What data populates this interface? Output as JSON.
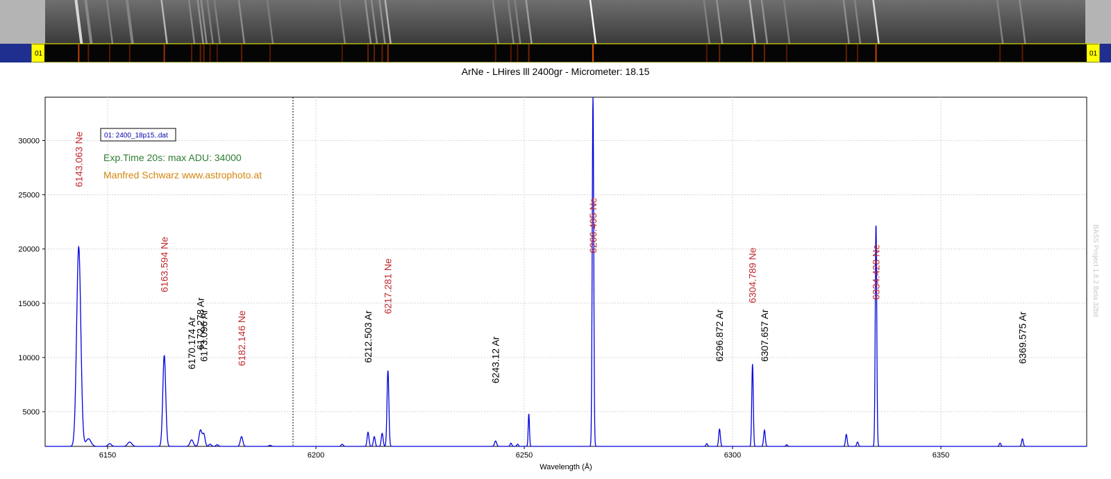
{
  "spectrum_strip": {
    "left_tag": "01",
    "right_tag": "01",
    "colors": {
      "side_band": "#1f2f8f",
      "tag_bg": "#ffff00",
      "gray_frame": "#b4b4b4"
    }
  },
  "chart_data": {
    "type": "line",
    "title": "ArNe - LHires lll 2400gr - Micrometer: 18.15",
    "xlabel": "Wavelength (Å)",
    "ylabel": "",
    "xlim": [
      6135,
      6385
    ],
    "ylim": [
      1800,
      34000
    ],
    "x_ticks": [
      6150,
      6200,
      6250,
      6300,
      6350
    ],
    "y_ticks": [
      5000,
      10000,
      15000,
      20000,
      25000,
      30000
    ],
    "grid": true,
    "baseline": 1800,
    "marker_x": 6194.5,
    "legend": {
      "label": "01: 2400_18p15..dat",
      "placement": "top-left"
    },
    "annotations": [
      {
        "text": "Exp.Time 20s: max ADU: 34000",
        "color": "#2e7d32"
      },
      {
        "text": "Manfred Schwarz www.astrophoto.at",
        "color": "#d4860e"
      }
    ],
    "watermark": "BASS Project 1.8.2 Beta 32bit",
    "series": [
      {
        "color": "#0000dd",
        "peaks": [
          {
            "x": 6143.063,
            "y": 20200,
            "w": 0.5
          },
          {
            "x": 6145.4,
            "y": 2500,
            "w": 0.6
          },
          {
            "x": 6150.5,
            "y": 2050,
            "w": 0.4
          },
          {
            "x": 6155.3,
            "y": 2200,
            "w": 0.5
          },
          {
            "x": 6163.594,
            "y": 10200,
            "w": 0.35
          },
          {
            "x": 6170.174,
            "y": 2400,
            "w": 0.4
          },
          {
            "x": 6172.278,
            "y": 3300,
            "w": 0.35
          },
          {
            "x": 6173.096,
            "y": 2900,
            "w": 0.3
          },
          {
            "x": 6174.6,
            "y": 2000,
            "w": 0.3
          },
          {
            "x": 6176.3,
            "y": 1950,
            "w": 0.3
          },
          {
            "x": 6182.146,
            "y": 2700,
            "w": 0.3
          },
          {
            "x": 6189.0,
            "y": 1900,
            "w": 0.3
          },
          {
            "x": 6206.3,
            "y": 2000,
            "w": 0.25
          },
          {
            "x": 6212.503,
            "y": 3100,
            "w": 0.22
          },
          {
            "x": 6214.0,
            "y": 2700,
            "w": 0.22
          },
          {
            "x": 6215.9,
            "y": 3000,
            "w": 0.22
          },
          {
            "x": 6217.281,
            "y": 8800,
            "w": 0.22
          },
          {
            "x": 6243.12,
            "y": 2300,
            "w": 0.25
          },
          {
            "x": 6246.8,
            "y": 2100,
            "w": 0.2
          },
          {
            "x": 6248.4,
            "y": 2000,
            "w": 0.2
          },
          {
            "x": 6251.1,
            "y": 4800,
            "w": 0.15
          },
          {
            "x": 6266.495,
            "y": 34000,
            "w": 0.18
          },
          {
            "x": 6293.8,
            "y": 2050,
            "w": 0.2
          },
          {
            "x": 6296.872,
            "y": 3400,
            "w": 0.2
          },
          {
            "x": 6304.789,
            "y": 9400,
            "w": 0.18
          },
          {
            "x": 6307.657,
            "y": 3300,
            "w": 0.2
          },
          {
            "x": 6313.0,
            "y": 1950,
            "w": 0.2
          },
          {
            "x": 6327.3,
            "y": 2900,
            "w": 0.2
          },
          {
            "x": 6330.0,
            "y": 2200,
            "w": 0.2
          },
          {
            "x": 6334.428,
            "y": 22300,
            "w": 0.18
          },
          {
            "x": 6364.2,
            "y": 2100,
            "w": 0.2
          },
          {
            "x": 6369.575,
            "y": 2500,
            "w": 0.2
          }
        ]
      }
    ],
    "line_labels": [
      {
        "text": "6143.063 Ne",
        "x": 6143.063,
        "y_top": 25700,
        "color": "#c0282d"
      },
      {
        "text": "6163.594 Ne",
        "x": 6163.594,
        "y_top": 16000,
        "color": "#c0282d"
      },
      {
        "text": "6170.174 Ar",
        "x": 6170.174,
        "y_top": 8900,
        "color": "#000000"
      },
      {
        "text": "6172.278 Ar",
        "x": 6172.278,
        "y_top": 10700,
        "color": "#000000"
      },
      {
        "text": "6173.096 Ar",
        "x": 6173.096,
        "y_top": 9600,
        "color": "#000000"
      },
      {
        "text": "6182.146 Ne",
        "x": 6182.146,
        "y_top": 9200,
        "color": "#c0282d"
      },
      {
        "text": "6212.503 Ar",
        "x": 6212.503,
        "y_top": 9500,
        "color": "#000000"
      },
      {
        "text": "6217.281 Ne",
        "x": 6217.281,
        "y_top": 14000,
        "color": "#c0282d"
      },
      {
        "text": "6243.12 Ar",
        "x": 6243.12,
        "y_top": 7600,
        "color": "#000000"
      },
      {
        "text": "6266.495 Ne",
        "x": 6266.495,
        "y_top": 19600,
        "color": "#c0282d"
      },
      {
        "text": "6296.872 Ar",
        "x": 6296.872,
        "y_top": 9600,
        "color": "#000000"
      },
      {
        "text": "6304.789 Ne",
        "x": 6304.789,
        "y_top": 15000,
        "color": "#c0282d"
      },
      {
        "text": "6307.657 Ar",
        "x": 6307.657,
        "y_top": 9600,
        "color": "#000000"
      },
      {
        "text": "6334.428 Ne",
        "x": 6334.428,
        "y_top": 15300,
        "color": "#c0282d"
      },
      {
        "text": "6369.575 Ar",
        "x": 6369.575,
        "y_top": 9400,
        "color": "#000000"
      }
    ]
  }
}
